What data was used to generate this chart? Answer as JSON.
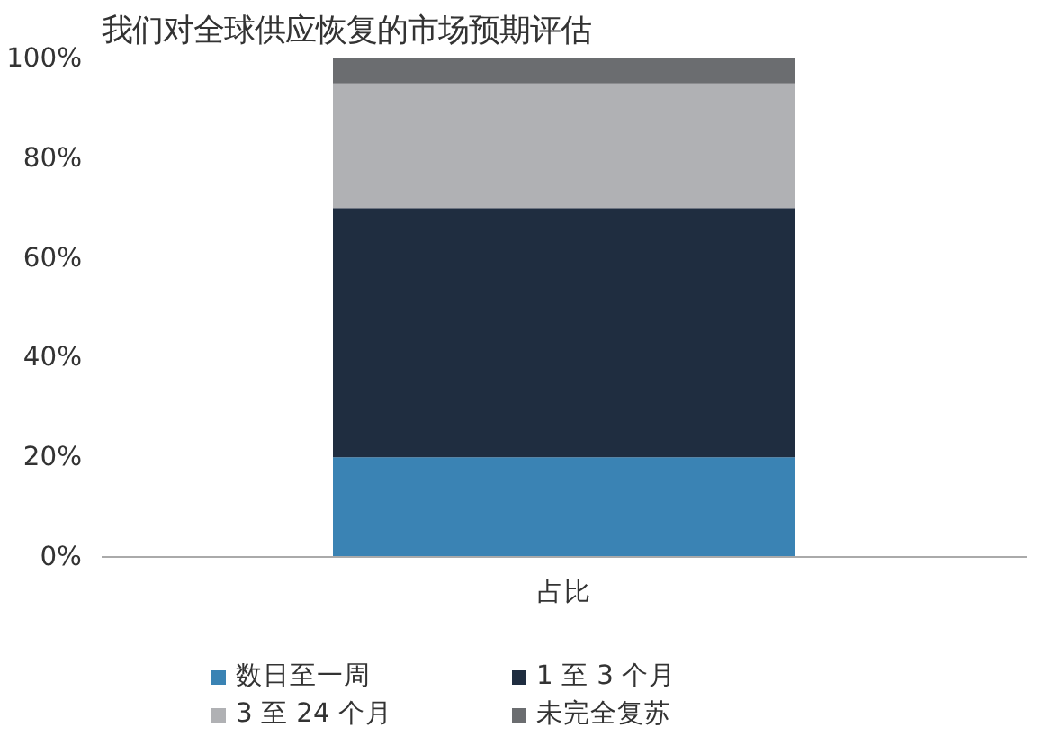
{
  "chart_data": {
    "type": "bar",
    "title": "我们对全球供应恢复的市场预期评估",
    "stacked": true,
    "categories": [
      "占比"
    ],
    "series": [
      {
        "name": "数日至一周",
        "color": "#3a83b4",
        "values": [
          20
        ]
      },
      {
        "name": "1 至 3 个月",
        "color": "#1f2d40",
        "values": [
          50
        ]
      },
      {
        "name": "3 至 24 个月",
        "color": "#b0b1b4",
        "values": [
          25
        ]
      },
      {
        "name": "未完全复苏",
        "color": "#6b6d70",
        "values": [
          5
        ]
      }
    ],
    "ylim": [
      0,
      100
    ],
    "yticks": [
      {
        "value": 0,
        "label": "0%"
      },
      {
        "value": 20,
        "label": "20%"
      },
      {
        "value": 40,
        "label": "40%"
      },
      {
        "value": 60,
        "label": "60%"
      },
      {
        "value": 80,
        "label": "80%"
      },
      {
        "value": 100,
        "label": "100%"
      }
    ],
    "grid": false,
    "legend": "bottom"
  }
}
